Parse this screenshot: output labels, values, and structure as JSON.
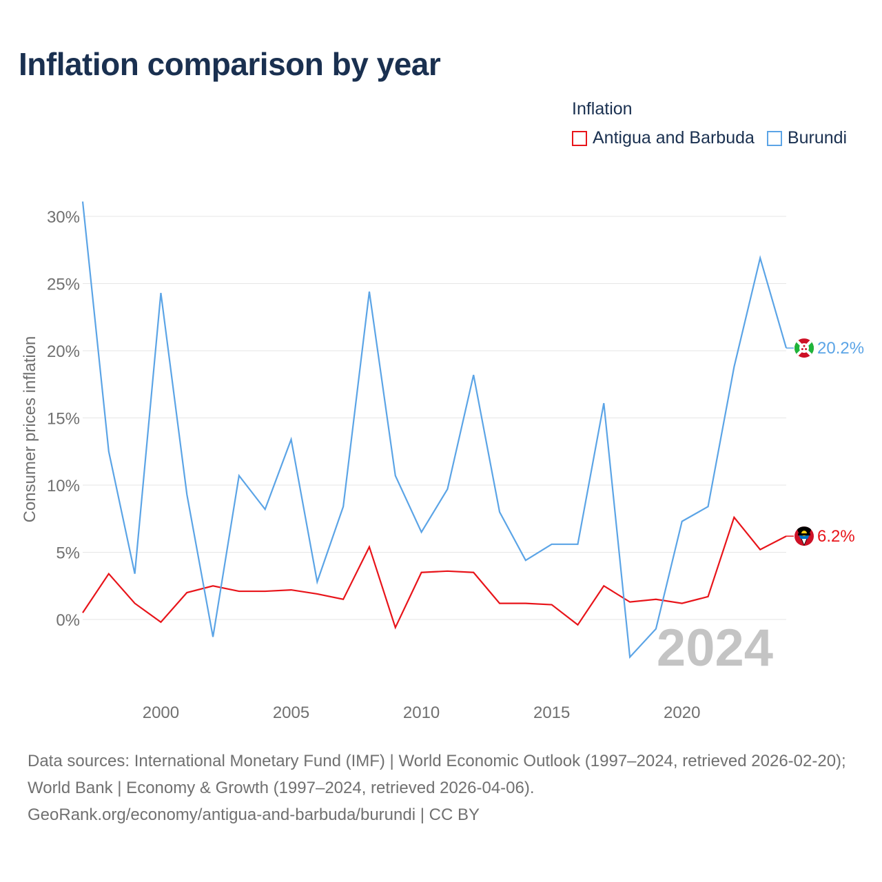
{
  "title": "Inflation comparison by year",
  "legend": {
    "title": "Inflation",
    "items": [
      {
        "label": "Antigua and Barbuda",
        "color": "#e8141a"
      },
      {
        "label": "Burundi",
        "color": "#5ba4e6"
      }
    ]
  },
  "chart_data": {
    "type": "line",
    "title": "Inflation comparison by year",
    "xlabel": "",
    "ylabel": "Consumer prices inflation",
    "x": [
      1997,
      1998,
      1999,
      2000,
      2001,
      2002,
      2003,
      2004,
      2005,
      2006,
      2007,
      2008,
      2009,
      2010,
      2011,
      2012,
      2013,
      2014,
      2015,
      2016,
      2017,
      2018,
      2019,
      2020,
      2021,
      2022,
      2023,
      2024
    ],
    "xlim": [
      1997,
      2024
    ],
    "ylim": [
      -5.6,
      31.0
    ],
    "xticks": [
      2000,
      2005,
      2010,
      2015,
      2020
    ],
    "yticks": [
      0,
      5,
      10,
      15,
      20,
      25,
      30
    ],
    "ytick_labels": [
      "0%",
      "5%",
      "10%",
      "15%",
      "20%",
      "25%",
      "30%"
    ],
    "series": [
      {
        "name": "Antigua and Barbuda",
        "color": "#e8141a",
        "values": [
          0.5,
          3.4,
          1.2,
          -0.2,
          2.0,
          2.5,
          2.1,
          2.1,
          2.2,
          1.9,
          1.5,
          5.4,
          -0.6,
          3.5,
          3.6,
          3.5,
          1.2,
          1.2,
          1.1,
          -0.4,
          2.5,
          1.3,
          1.5,
          1.2,
          1.7,
          7.6,
          5.2,
          6.2
        ],
        "end_label": "6.2%"
      },
      {
        "name": "Burundi",
        "color": "#5ba4e6",
        "values": [
          31.1,
          12.5,
          3.4,
          24.3,
          9.3,
          -1.3,
          10.7,
          8.2,
          13.4,
          2.8,
          8.4,
          24.4,
          10.7,
          6.5,
          9.7,
          18.2,
          8.0,
          4.4,
          5.6,
          5.6,
          16.1,
          -2.8,
          -0.7,
          7.3,
          8.4,
          18.8,
          26.9,
          20.2
        ],
        "end_label": "20.2%"
      }
    ],
    "year_watermark": "2024"
  },
  "footer": {
    "line1": "Data sources: International Monetary Fund (IMF) | World Economic Outlook (1997–2024, retrieved 2026-02-20); World Bank | Economy & Growth (1997–2024, retrieved 2026-04-06).",
    "line2": "GeoRank.org/economy/antigua-and-barbuda/burundi | CC BY"
  }
}
